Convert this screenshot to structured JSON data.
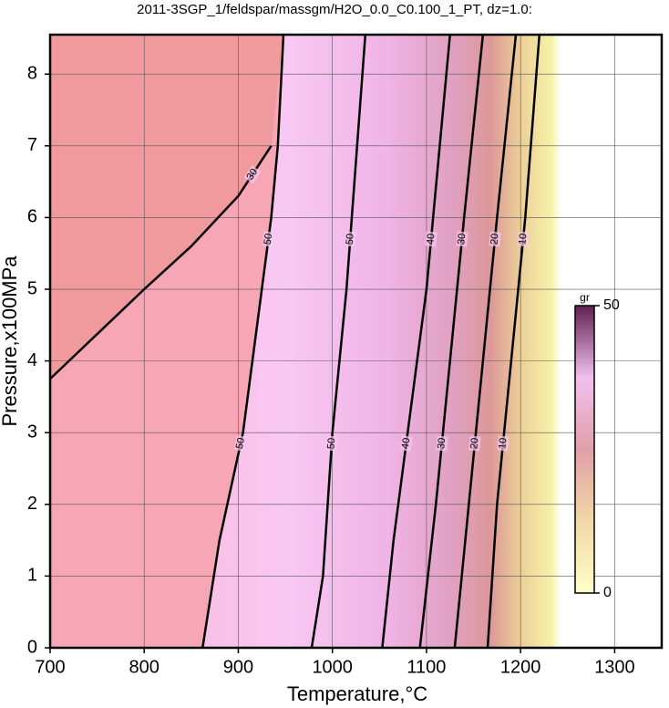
{
  "chart_data": {
    "type": "contour",
    "title": "2011-3SGP_1/feldspar/massgm/H2O_0.0_C0.100_1_PT, dz=1.0:",
    "xlabel": "Temperature,°C",
    "ylabel": "Pressure,x100MPa",
    "xlim": [
      700,
      1350
    ],
    "ylim": [
      0,
      8.55
    ],
    "xticks": [
      700,
      800,
      900,
      1000,
      1100,
      1200,
      1300
    ],
    "yticks": [
      0,
      1,
      2,
      3,
      4,
      5,
      6,
      7,
      8
    ],
    "grid": true,
    "contours": [
      {
        "level": 50,
        "x": [
          862,
          880,
          905,
          925,
          935,
          942,
          948
        ],
        "y": [
          0,
          1.5,
          3,
          5,
          6,
          7,
          8.55
        ]
      },
      {
        "level": 30,
        "x": [
          700,
          720,
          760,
          800,
          850,
          900,
          930,
          935
        ],
        "y": [
          3.75,
          4.0,
          4.5,
          5.0,
          5.6,
          6.3,
          6.9,
          7.0
        ]
      },
      {
        "level": 50,
        "x": [
          978,
          990,
          1000,
          1015,
          1035
        ],
        "y": [
          0,
          1,
          3,
          5,
          8.55
        ]
      },
      {
        "level": 40,
        "x": [
          1053,
          1065,
          1080,
          1100,
          1125
        ],
        "y": [
          0,
          1.5,
          3,
          5,
          8.55
        ]
      },
      {
        "level": 30,
        "x": [
          1093,
          1110,
          1125,
          1140,
          1160
        ],
        "y": [
          0,
          2,
          4,
          6,
          8.55
        ]
      },
      {
        "level": 20,
        "x": [
          1130,
          1145,
          1160,
          1175,
          1195
        ],
        "y": [
          0,
          2,
          4,
          6,
          8.55
        ]
      },
      {
        "level": 10,
        "x": [
          1165,
          1175,
          1190,
          1205,
          1220
        ],
        "y": [
          0,
          2,
          4,
          6,
          8.55
        ]
      }
    ],
    "colorbar": {
      "label": "gr",
      "lim": [
        0,
        50
      ],
      "ticks": [
        0,
        50
      ]
    }
  }
}
